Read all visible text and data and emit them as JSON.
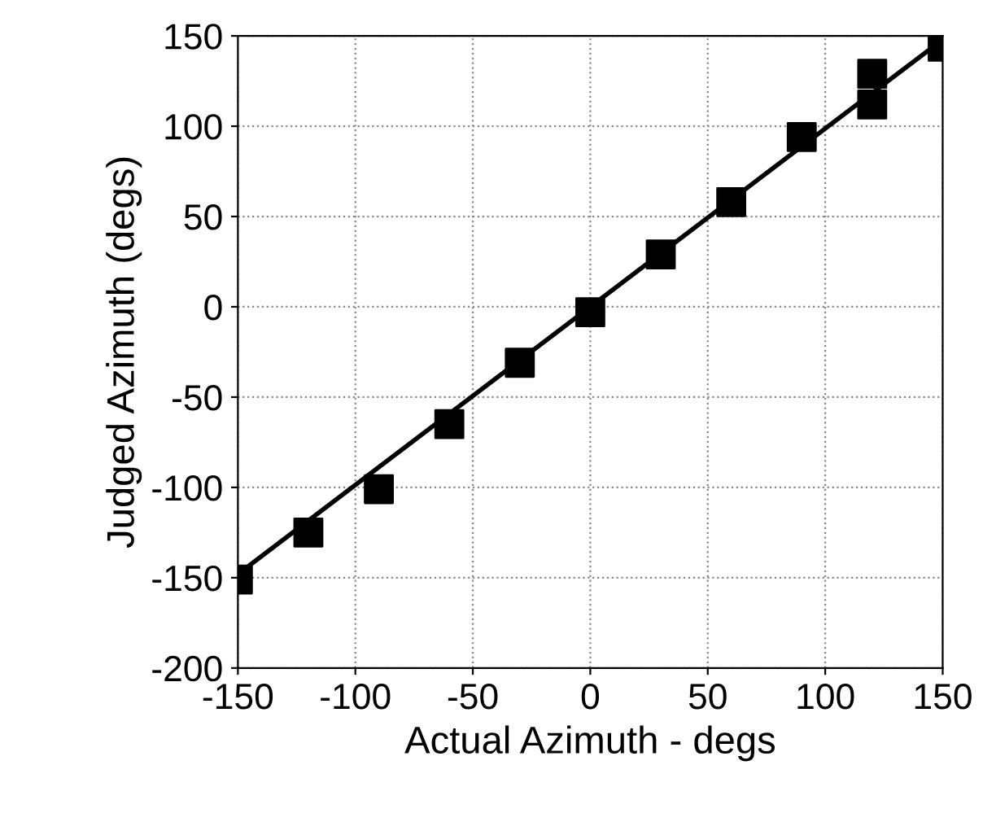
{
  "chart_data": {
    "type": "scatter",
    "xlabel": "Actual Azimuth - degs",
    "ylabel": "Judged Azimuth (degs)",
    "xlim": [
      -150,
      150
    ],
    "ylim": [
      -200,
      150
    ],
    "xticks": [
      -150,
      -100,
      -50,
      0,
      50,
      100,
      150
    ],
    "yticks": [
      -200,
      -150,
      -100,
      -50,
      0,
      50,
      100,
      150
    ],
    "grid": true,
    "series": [
      {
        "color": "#000000",
        "marker": "square",
        "x": [
          -150,
          -120,
          -90,
          -60,
          -30,
          0,
          30,
          60,
          90,
          120,
          120,
          150
        ],
        "values": [
          -151,
          -125,
          -101,
          -65,
          -31,
          -3,
          29,
          58,
          94,
          129,
          112,
          144
        ]
      },
      {
        "type": "line",
        "color": "#000000",
        "x": [
          -150,
          150
        ],
        "values": [
          -148,
          148
        ],
        "line_style": "solid"
      }
    ]
  }
}
